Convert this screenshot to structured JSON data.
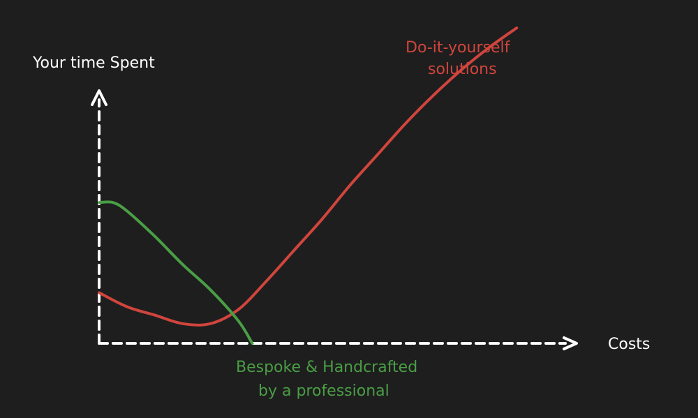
{
  "chart_data": {
    "type": "line",
    "ylabel": "Your time Spent",
    "xlabel": "Costs",
    "grid": false,
    "legend": "none",
    "series": [
      {
        "label_lines": [
          "Do-it-yourself",
          "solutions"
        ],
        "color": "#d0453d",
        "shape": "u-curve-rising",
        "x": [
          0,
          6,
          12,
          18,
          24,
          30,
          36,
          42,
          48,
          54,
          60,
          66,
          72,
          78,
          84,
          90
        ],
        "y": [
          18,
          13,
          10,
          7,
          7,
          12,
          22,
          33,
          44,
          56,
          67,
          78,
          88,
          97,
          105,
          112
        ]
      },
      {
        "label_lines": [
          "Bespoke & Handcrafted",
          "by a professional"
        ],
        "color": "#4a9e45",
        "shape": "decreasing",
        "x": [
          0,
          3,
          6,
          12,
          18,
          24,
          30,
          33
        ],
        "y": [
          50,
          50,
          47,
          38,
          28,
          19,
          8,
          0
        ]
      }
    ],
    "xlim": [
      0,
      105
    ],
    "ylim": [
      0,
      112
    ],
    "axis_color": "#ffffff",
    "background": "#1e1e1e"
  }
}
